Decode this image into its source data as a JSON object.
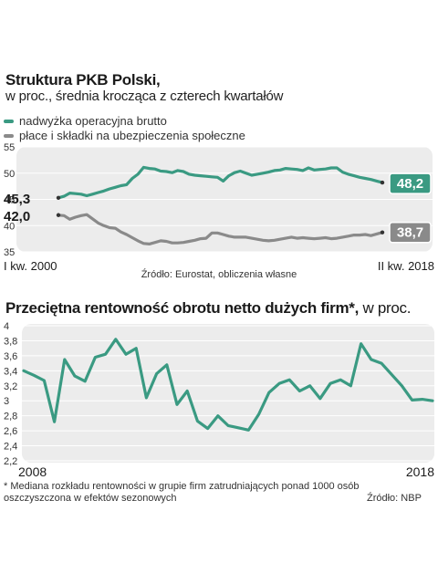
{
  "chart_data": [
    {
      "type": "line",
      "title": "Struktura PKB Polski,",
      "subtitle": "w proc., średnia krocząca z czterech kwartałów",
      "ylim": [
        35,
        55
      ],
      "yticks": [
        "55",
        "50",
        "45",
        "40",
        "35"
      ],
      "x_start_label": "I kw. 2000",
      "x_end_label": "II kw. 2018",
      "source": "Źródło: Eurostat, obliczenia własne",
      "grid": true,
      "legend_position": "top-left",
      "series": [
        {
          "name": "nadwyżka operacyjna brutto",
          "color": "#3a9a82",
          "start_label": "45,3",
          "end_label": "48,2",
          "values": [
            45.3,
            45.6,
            46.2,
            46.1,
            46.0,
            45.7,
            46.0,
            46.3,
            46.6,
            47.0,
            47.3,
            47.6,
            47.8,
            49.0,
            49.8,
            51.1,
            50.9,
            50.8,
            50.4,
            50.3,
            50.1,
            50.5,
            50.3,
            49.8,
            49.6,
            49.5,
            49.4,
            49.3,
            49.2,
            48.5,
            49.5,
            50.1,
            50.4,
            50.0,
            49.6,
            49.8,
            50.0,
            50.2,
            50.5,
            50.6,
            50.9,
            50.8,
            50.7,
            50.5,
            51.0,
            50.6,
            50.7,
            50.8,
            51.0,
            51.0,
            50.2,
            49.8,
            49.5,
            49.2,
            49.0,
            48.8,
            48.5,
            48.2
          ]
        },
        {
          "name": "płace i składki na ubezpieczenia społeczne",
          "color": "#8a8a8a",
          "start_label": "42,0",
          "end_label": "38,7",
          "values": [
            42.0,
            41.9,
            41.2,
            41.6,
            41.9,
            42.1,
            41.3,
            40.5,
            40.0,
            39.6,
            39.5,
            38.8,
            38.3,
            37.7,
            37.1,
            36.6,
            36.5,
            36.8,
            37.1,
            37.0,
            36.7,
            36.7,
            36.8,
            37.0,
            37.2,
            37.5,
            37.6,
            38.6,
            38.6,
            38.3,
            38.0,
            37.8,
            37.8,
            37.8,
            37.6,
            37.4,
            37.2,
            37.1,
            37.2,
            37.4,
            37.6,
            37.8,
            37.6,
            37.7,
            37.6,
            37.5,
            37.6,
            37.7,
            37.5,
            37.6,
            37.8,
            38.0,
            38.2,
            38.2,
            38.3,
            38.1,
            38.4,
            38.7
          ]
        }
      ]
    },
    {
      "type": "line",
      "title_bold": "Przeciętna rentowność obrotu netto dużych firm*,",
      "title_rest": " w proc.",
      "ylim": [
        2.2,
        4.0
      ],
      "yticks": [
        "4",
        "3,8",
        "3,6",
        "3,4",
        "3,2",
        "3",
        "2,8",
        "2,6",
        "2,4",
        "2,2"
      ],
      "x_start_label": "2008",
      "x_end_label": "2018",
      "grid": true,
      "footnote": "* Mediana rozkładu rentowności w grupie firm zatrudniających ponad 1000 osób oszczyszczona w efektów sezonowych",
      "source": "Źródło: NBP",
      "series": [
        {
          "color": "#3a9a82",
          "values": [
            3.4,
            3.34,
            3.27,
            2.72,
            3.55,
            3.33,
            3.26,
            3.58,
            3.62,
            3.82,
            3.62,
            3.7,
            3.04,
            3.36,
            3.48,
            2.95,
            3.13,
            2.73,
            2.63,
            2.8,
            2.67,
            2.64,
            2.61,
            2.82,
            3.11,
            3.23,
            3.28,
            3.13,
            3.2,
            3.03,
            3.23,
            3.28,
            3.2,
            3.76,
            3.55,
            3.5,
            3.35,
            3.2,
            3.01,
            3.02,
            3.0
          ]
        }
      ]
    }
  ]
}
